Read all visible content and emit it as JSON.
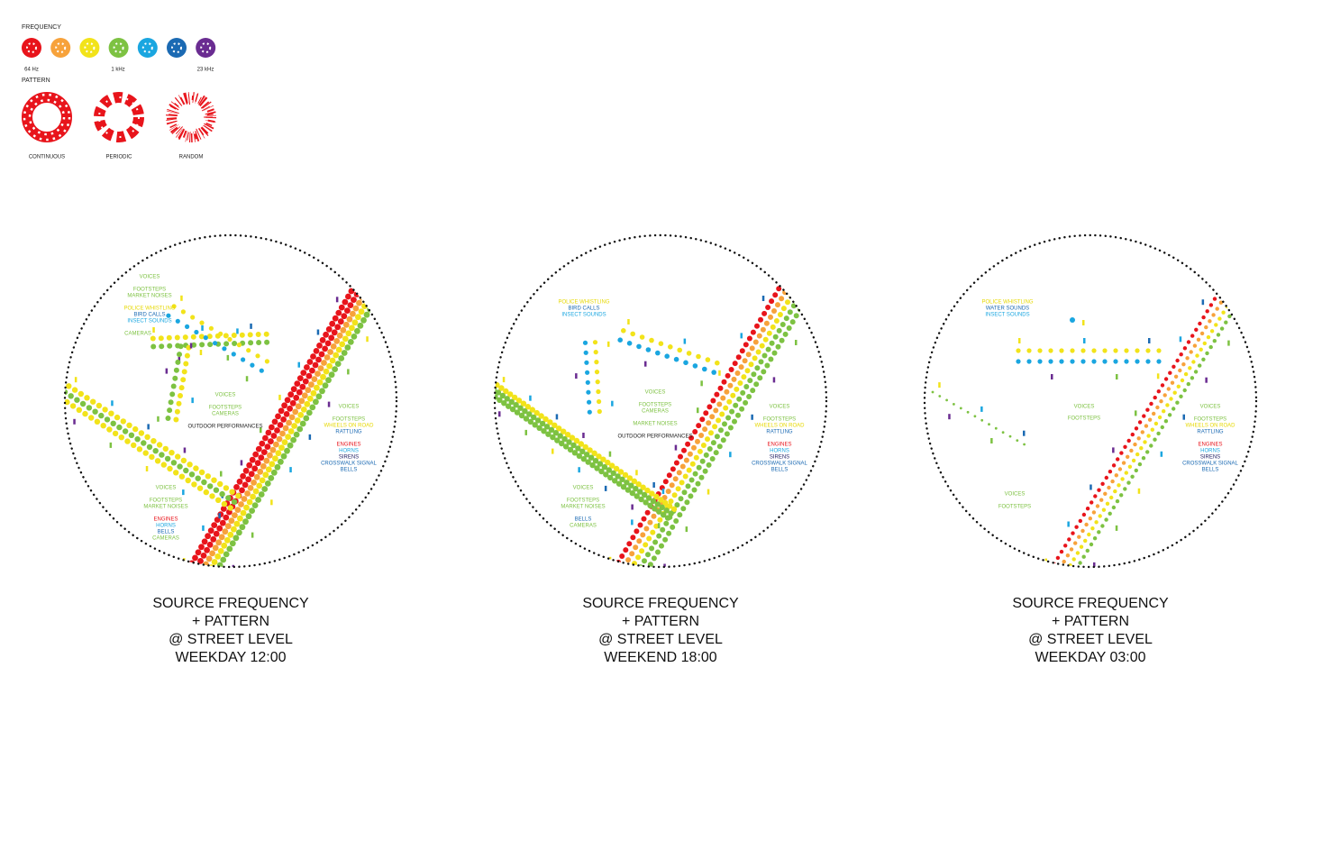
{
  "legend": {
    "frequency": {
      "title": "FREQUENCY",
      "labels": [
        "64 Hz",
        "1 kHz",
        "23 kHz"
      ],
      "colors": [
        "#e8141b",
        "#f7a23b",
        "#f2e31a",
        "#7dc242",
        "#1aa6e0",
        "#1b6ab3",
        "#6a2c91"
      ]
    },
    "pattern": {
      "title": "PATTERN",
      "items": [
        "CONTINUOUS",
        "PERIODIC",
        "RANDOM"
      ]
    }
  },
  "maps": [
    {
      "labels": [
        {
          "text": "VOICES",
          "color": "#7dc242"
        },
        {
          "text": "FOOTSTEPS",
          "color": "#7dc242"
        },
        {
          "text": "MARKET NOISES",
          "color": "#7dc242"
        },
        {
          "text": "POLICE WHISTLING",
          "color": "#e6d800"
        },
        {
          "text": "BIRD CALLS",
          "color": "#1b6ab3"
        },
        {
          "text": "INSECT SOUNDS",
          "color": "#1aa6e0"
        },
        {
          "text": "CAMERAS",
          "color": "#7dc242"
        },
        {
          "text": "VOICES",
          "color": "#7dc242"
        },
        {
          "text": "FOOTSTEPS",
          "color": "#7dc242"
        },
        {
          "text": "CAMERAS",
          "color": "#7dc242"
        },
        {
          "text": "OUTDOOR PERFORMANCES",
          "color": "#222222"
        },
        {
          "text": "VOICES",
          "color": "#7dc242"
        },
        {
          "text": "FOOTSTEPS",
          "color": "#7dc242"
        },
        {
          "text": "WHEELS ON ROAD",
          "color": "#e6d800"
        },
        {
          "text": "RATTLING",
          "color": "#1b6ab3"
        },
        {
          "text": "ENGINES",
          "color": "#e8141b"
        },
        {
          "text": "HORNS",
          "color": "#1aa6e0"
        },
        {
          "text": "SIRENS",
          "color": "#222266"
        },
        {
          "text": "CROSSWALK SIGNAL",
          "color": "#1b6ab3"
        },
        {
          "text": "BELLS",
          "color": "#1b6ab3"
        },
        {
          "text": "VOICES",
          "color": "#7dc242"
        },
        {
          "text": "FOOTSTEPS",
          "color": "#7dc242"
        },
        {
          "text": "MARKET NOISES",
          "color": "#7dc242"
        },
        {
          "text": "ENGINES",
          "color": "#e8141b"
        },
        {
          "text": "HORNS",
          "color": "#1aa6e0"
        },
        {
          "text": "BELLS",
          "color": "#1b6ab3"
        },
        {
          "text": "CAMERAS",
          "color": "#7dc242"
        }
      ],
      "caption": [
        "SOURCE FREQUENCY",
        "+ PATTERN",
        "@ STREET LEVEL",
        "WEEKDAY 12:00"
      ]
    },
    {
      "labels": [
        {
          "text": "POLICE WHISTLING",
          "color": "#e6d800"
        },
        {
          "text": "BIRD CALLS",
          "color": "#1b6ab3"
        },
        {
          "text": "INSECT SOUNDS",
          "color": "#1aa6e0"
        },
        {
          "text": "VOICES",
          "color": "#7dc242"
        },
        {
          "text": "FOOTSTEPS",
          "color": "#7dc242"
        },
        {
          "text": "CAMERAS",
          "color": "#7dc242"
        },
        {
          "text": "MARKET NOISES",
          "color": "#7dc242"
        },
        {
          "text": "OUTDOOR PERFORMANCES",
          "color": "#222222"
        },
        {
          "text": "VOICES",
          "color": "#7dc242"
        },
        {
          "text": "FOOTSTEPS",
          "color": "#7dc242"
        },
        {
          "text": "WHEELS ON ROAD",
          "color": "#e6d800"
        },
        {
          "text": "RATTLING",
          "color": "#1b6ab3"
        },
        {
          "text": "ENGINES",
          "color": "#e8141b"
        },
        {
          "text": "HORNS",
          "color": "#1aa6e0"
        },
        {
          "text": "SIRENS",
          "color": "#222266"
        },
        {
          "text": "CROSSWALK SIGNAL",
          "color": "#1b6ab3"
        },
        {
          "text": "BELLS",
          "color": "#1b6ab3"
        },
        {
          "text": "VOICES",
          "color": "#7dc242"
        },
        {
          "text": "FOOTSTEPS",
          "color": "#7dc242"
        },
        {
          "text": "MARKET NOISES",
          "color": "#7dc242"
        },
        {
          "text": "BELLS",
          "color": "#1b6ab3"
        },
        {
          "text": "CAMERAS",
          "color": "#7dc242"
        }
      ],
      "caption": [
        "SOURCE FREQUENCY",
        "+ PATTERN",
        "@ STREET LEVEL",
        "WEEKEND 18:00"
      ]
    },
    {
      "labels": [
        {
          "text": "POLICE WHISTLING",
          "color": "#e6d800"
        },
        {
          "text": "WATER SOUNDS",
          "color": "#1b6ab3"
        },
        {
          "text": "INSECT SOUNDS",
          "color": "#1aa6e0"
        },
        {
          "text": "VOICES",
          "color": "#7dc242"
        },
        {
          "text": "FOOTSTEPS",
          "color": "#7dc242"
        },
        {
          "text": "VOICES",
          "color": "#7dc242"
        },
        {
          "text": "FOOTSTEPS",
          "color": "#7dc242"
        },
        {
          "text": "WHEELS ON ROAD",
          "color": "#e6d800"
        },
        {
          "text": "RATTLING",
          "color": "#1b6ab3"
        },
        {
          "text": "ENGINES",
          "color": "#e8141b"
        },
        {
          "text": "HORNS",
          "color": "#1aa6e0"
        },
        {
          "text": "SIRENS",
          "color": "#222266"
        },
        {
          "text": "CROSSWALK SIGNAL",
          "color": "#1b6ab3"
        },
        {
          "text": "BELLS",
          "color": "#1b6ab3"
        },
        {
          "text": "VOICES",
          "color": "#7dc242"
        },
        {
          "text": "FOOTSTEPS",
          "color": "#7dc242"
        }
      ],
      "caption": [
        "SOURCE FREQUENCY",
        "+ PATTERN",
        "@ STREET LEVEL",
        "WEEKDAY 03:00"
      ]
    }
  ]
}
